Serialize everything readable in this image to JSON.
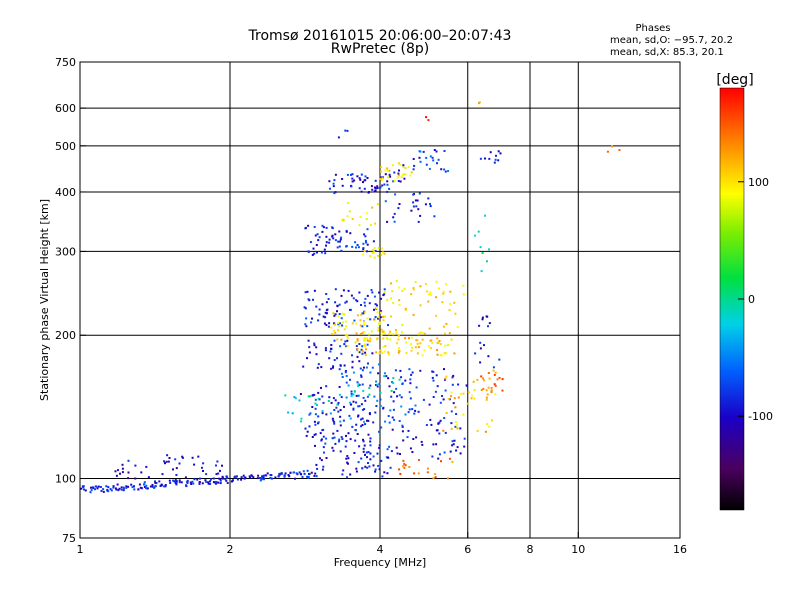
{
  "chart_data": {
    "type": "scatter",
    "title": "Tromsø 20161015 20:06:00–20:07:43",
    "subtitle": "RwPretec (8p)",
    "xlabel": "Frequency [MHz]",
    "ylabel": "Stationary phase Virtual Height [km]",
    "x_scale": "log",
    "y_scale": "log",
    "xlim": [
      1,
      16
    ],
    "ylim": [
      75,
      750
    ],
    "x_ticks": [
      1,
      2,
      4,
      6,
      8,
      10,
      16
    ],
    "y_ticks": [
      75,
      100,
      200,
      300,
      400,
      500,
      600,
      750
    ],
    "x_gridlines": [
      2,
      4,
      6,
      8,
      10
    ],
    "y_gridlines": [
      100,
      200,
      300,
      400,
      500,
      600
    ],
    "grid": true,
    "phase_stats": {
      "heading": "Phases",
      "line_o": "mean, sd,O: −95.7, 20.2",
      "line_x": "mean, sd,X:  85.3, 20.1"
    },
    "colorbar": {
      "label": "[deg]",
      "ticks": [
        100,
        0,
        -100
      ],
      "range": [
        -180,
        180
      ]
    },
    "clusters": [
      {
        "x": [
          1.0,
          2.95
        ],
        "y": [
          93,
          104
        ],
        "phase": -100,
        "n": 210,
        "spread": 0.05,
        "trend": true
      },
      {
        "x": [
          1.15,
          1.9
        ],
        "y": [
          100,
          112
        ],
        "phase": -110,
        "n": 45,
        "spread": 0.05
      },
      {
        "x": [
          2.85,
          3.3
        ],
        "y": [
          295,
          340
        ],
        "phase": -100,
        "n": 30,
        "spread": 0.04
      },
      {
        "x": [
          3.1,
          3.9
        ],
        "y": [
          300,
          340
        ],
        "phase": -100,
        "n": 35,
        "spread": 0.05
      },
      {
        "x": [
          3.2,
          4.4
        ],
        "y": [
          395,
          440
        ],
        "phase": -105,
        "n": 60,
        "spread": 0.05
      },
      {
        "x": [
          3.4,
          3.95
        ],
        "y": [
          340,
          380
        ],
        "phase": 95,
        "n": 15,
        "spread": 0.04
      },
      {
        "x": [
          3.7,
          4.1
        ],
        "y": [
          290,
          305
        ],
        "phase": 100,
        "n": 15,
        "spread": 0.03
      },
      {
        "x": [
          4.05,
          4.6
        ],
        "y": [
          420,
          460
        ],
        "phase": 100,
        "n": 25,
        "spread": 0.04
      },
      {
        "x": [
          4.4,
          5.5
        ],
        "y": [
          440,
          490
        ],
        "phase": -90,
        "n": 25,
        "spread": 0.05
      },
      {
        "x": [
          4.2,
          5.2
        ],
        "y": [
          340,
          400
        ],
        "phase": -95,
        "n": 25,
        "spread": 0.06
      },
      {
        "x": [
          2.8,
          4.1
        ],
        "y": [
          208,
          250
        ],
        "phase": -100,
        "n": 90,
        "spread": 0.06
      },
      {
        "x": [
          2.85,
          3.9
        ],
        "y": [
          170,
          195
        ],
        "phase": -100,
        "n": 50,
        "spread": 0.06
      },
      {
        "x": [
          3.2,
          4.2
        ],
        "y": [
          195,
          225
        ],
        "phase": 100,
        "n": 60,
        "spread": 0.05
      },
      {
        "x": [
          3.5,
          5.6
        ],
        "y": [
          180,
          205
        ],
        "phase": 105,
        "n": 90,
        "spread": 0.05
      },
      {
        "x": [
          4.0,
          5.8
        ],
        "y": [
          205,
          260
        ],
        "phase": 100,
        "n": 50,
        "spread": 0.06
      },
      {
        "x": [
          2.8,
          3.8
        ],
        "y": [
          120,
          160
        ],
        "phase": -100,
        "n": 90,
        "spread": 0.07
      },
      {
        "x": [
          3.0,
          4.2
        ],
        "y": [
          100,
          125
        ],
        "phase": -100,
        "n": 80,
        "spread": 0.07
      },
      {
        "x": [
          3.3,
          4.6
        ],
        "y": [
          125,
          175
        ],
        "phase": -80,
        "n": 70,
        "spread": 0.07
      },
      {
        "x": [
          4.0,
          5.9
        ],
        "y": [
          110,
          170
        ],
        "phase": -100,
        "n": 100,
        "spread": 0.07
      },
      {
        "x": [
          5.4,
          6.8
        ],
        "y": [
          125,
          165
        ],
        "phase": 110,
        "n": 35,
        "spread": 0.05
      },
      {
        "x": [
          6.3,
          7.0
        ],
        "y": [
          150,
          170
        ],
        "phase": 140,
        "n": 20,
        "spread": 0.03
      },
      {
        "x": [
          6.3,
          6.9
        ],
        "y": [
          170,
          230
        ],
        "phase": -110,
        "n": 15,
        "spread": 0.04
      },
      {
        "x": [
          4.3,
          5.6
        ],
        "y": [
          100,
          110
        ],
        "phase": 140,
        "n": 20,
        "spread": 0.04
      },
      {
        "x": [
          2.6,
          3.5
        ],
        "y": [
          130,
          150
        ],
        "phase": -30,
        "n": 20,
        "spread": 0.06
      },
      {
        "x": [
          3.5,
          4.5
        ],
        "y": [
          150,
          165
        ],
        "phase": -20,
        "n": 15,
        "spread": 0.05
      },
      {
        "x": [
          3.3,
          3.5
        ],
        "y": [
          520,
          545
        ],
        "phase": -100,
        "n": 3,
        "spread": 0.02
      },
      {
        "x": [
          4.9,
          5.1
        ],
        "y": [
          565,
          575
        ],
        "phase": 180,
        "n": 2,
        "spread": 0.01
      },
      {
        "x": [
          6.3,
          6.4
        ],
        "y": [
          600,
          620
        ],
        "phase": 110,
        "n": 2,
        "spread": 0.01
      },
      {
        "x": [
          11.5,
          12.2
        ],
        "y": [
          470,
          590
        ],
        "phase": 140,
        "n": 3,
        "spread": 0.01
      },
      {
        "x": [
          6.0,
          6.8
        ],
        "y": [
          270,
          360
        ],
        "phase": -20,
        "n": 8,
        "spread": 0.04
      },
      {
        "x": [
          6.4,
          7.0
        ],
        "y": [
          460,
          490
        ],
        "phase": -100,
        "n": 10,
        "spread": 0.03
      }
    ]
  }
}
